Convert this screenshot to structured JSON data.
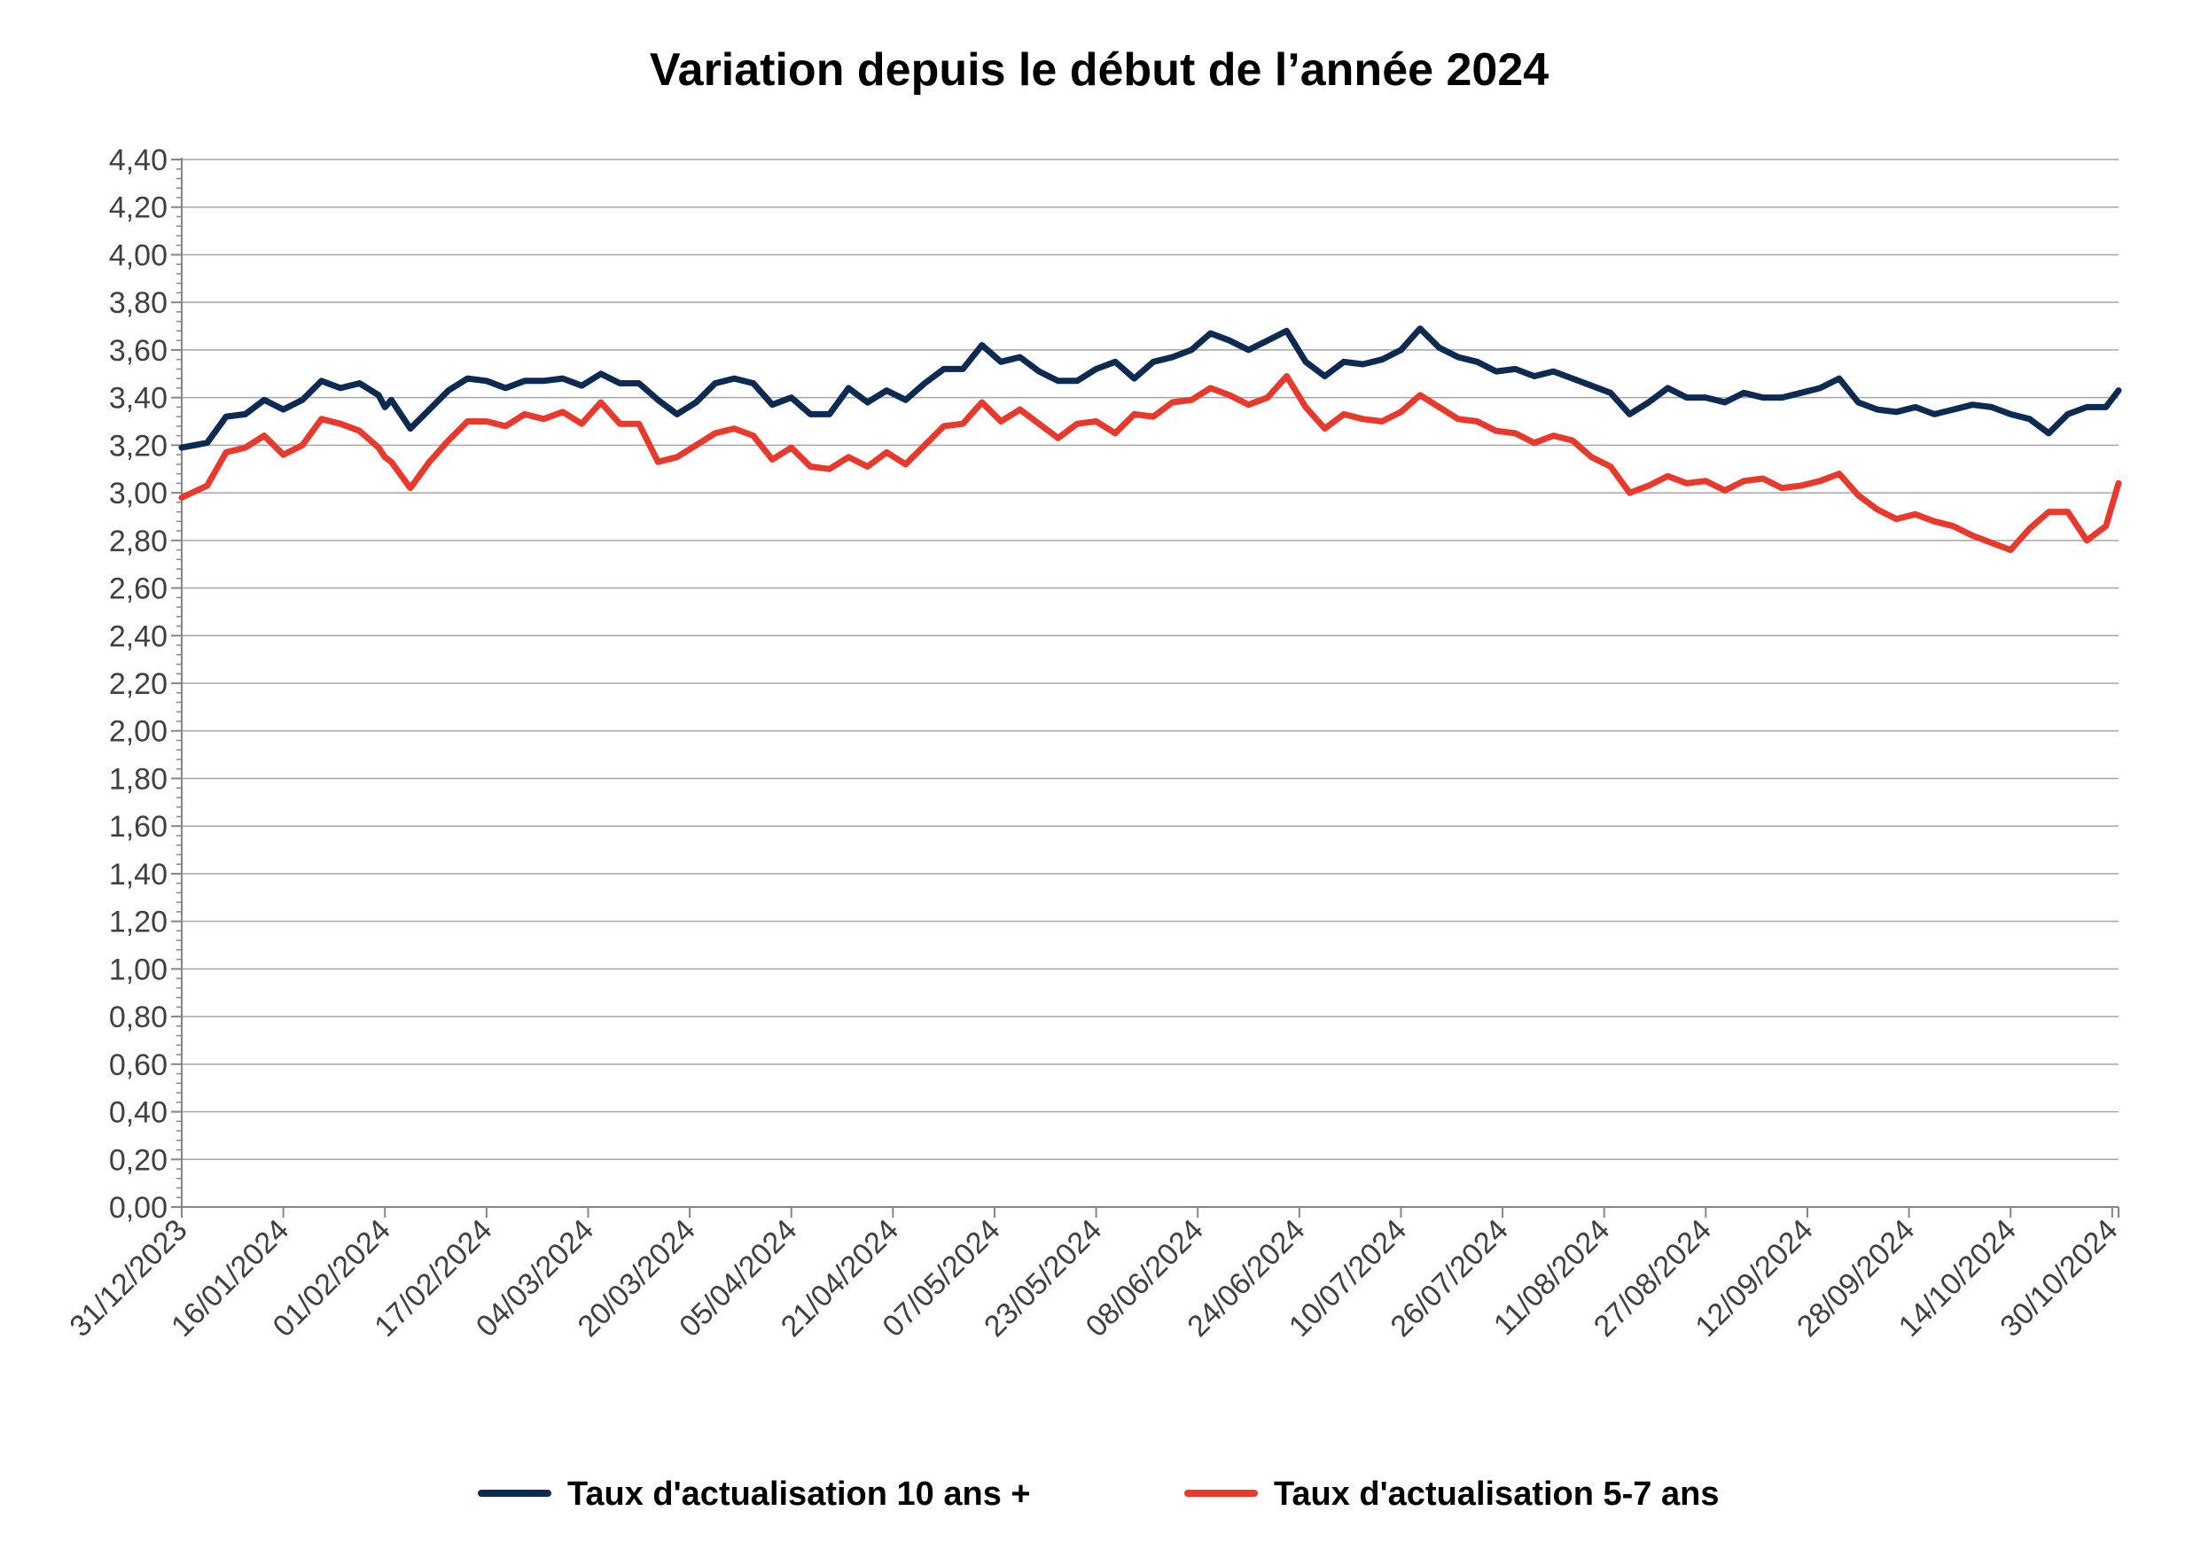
{
  "chart_data": {
    "type": "line",
    "title": "Variation depuis le début de l’année 2024",
    "xlabel": "",
    "ylabel": "",
    "ylim": [
      0,
      4.4
    ],
    "ytick_step": 0.2,
    "yticks": [
      "0,00",
      "0,20",
      "0,40",
      "0,60",
      "0,80",
      "1,00",
      "1,20",
      "1,40",
      "1,60",
      "1,80",
      "2,00",
      "2,20",
      "2,40",
      "2,60",
      "2,80",
      "3,00",
      "3,20",
      "3,40",
      "3,60",
      "3,80",
      "4,00",
      "4,20",
      "4,40"
    ],
    "x_tick_labels": [
      "31/12/2023",
      "16/01/2024",
      "01/02/2024",
      "17/02/2024",
      "04/03/2024",
      "20/03/2024",
      "05/04/2024",
      "21/04/2024",
      "07/05/2024",
      "23/05/2024",
      "08/06/2024",
      "24/06/2024",
      "10/07/2024",
      "26/07/2024",
      "11/08/2024",
      "27/08/2024",
      "12/09/2024",
      "28/09/2024",
      "14/10/2024",
      "30/10/2024"
    ],
    "xlim": [
      "31/12/2023",
      "31/10/2024"
    ],
    "grid": true,
    "legend": "bottom",
    "series": [
      {
        "name": "Taux d'actualisation 10 ans +",
        "color": "#0d2a53",
        "x": [
          "31/12/2023",
          "04/01/2024",
          "07/01/2024",
          "10/01/2024",
          "13/01/2024",
          "16/01/2024",
          "19/01/2024",
          "22/01/2024",
          "25/01/2024",
          "28/01/2024",
          "31/01/2024",
          "01/02/2024",
          "02/02/2024",
          "05/02/2024",
          "08/02/2024",
          "11/02/2024",
          "14/02/2024",
          "17/02/2024",
          "20/02/2024",
          "23/02/2024",
          "26/02/2024",
          "29/02/2024",
          "03/03/2024",
          "06/03/2024",
          "09/03/2024",
          "12/03/2024",
          "15/03/2024",
          "18/03/2024",
          "21/03/2024",
          "24/03/2024",
          "27/03/2024",
          "30/03/2024",
          "02/04/2024",
          "05/04/2024",
          "08/04/2024",
          "11/04/2024",
          "14/04/2024",
          "17/04/2024",
          "20/04/2024",
          "23/04/2024",
          "26/04/2024",
          "29/04/2024",
          "02/05/2024",
          "05/05/2024",
          "08/05/2024",
          "11/05/2024",
          "14/05/2024",
          "17/05/2024",
          "20/05/2024",
          "23/05/2024",
          "26/05/2024",
          "29/05/2024",
          "01/06/2024",
          "04/06/2024",
          "07/06/2024",
          "10/06/2024",
          "13/06/2024",
          "16/06/2024",
          "19/06/2024",
          "22/06/2024",
          "25/06/2024",
          "28/06/2024",
          "01/07/2024",
          "04/07/2024",
          "07/07/2024",
          "10/07/2024",
          "13/07/2024",
          "16/07/2024",
          "19/07/2024",
          "22/07/2024",
          "25/07/2024",
          "28/07/2024",
          "31/07/2024",
          "03/08/2024",
          "06/08/2024",
          "09/08/2024",
          "12/08/2024",
          "15/08/2024",
          "18/08/2024",
          "21/08/2024",
          "24/08/2024",
          "27/08/2024",
          "30/08/2024",
          "02/09/2024",
          "05/09/2024",
          "08/09/2024",
          "11/09/2024",
          "14/09/2024",
          "17/09/2024",
          "20/09/2024",
          "23/09/2024",
          "26/09/2024",
          "29/09/2024",
          "02/10/2024",
          "05/10/2024",
          "08/10/2024",
          "11/10/2024",
          "14/10/2024",
          "17/10/2024",
          "20/10/2024",
          "23/10/2024",
          "26/10/2024",
          "29/10/2024",
          "31/10/2024"
        ],
        "values": [
          3.19,
          3.21,
          3.32,
          3.33,
          3.39,
          3.35,
          3.39,
          3.47,
          3.44,
          3.46,
          3.41,
          3.36,
          3.39,
          3.27,
          3.35,
          3.43,
          3.48,
          3.47,
          3.44,
          3.47,
          3.47,
          3.48,
          3.45,
          3.5,
          3.46,
          3.46,
          3.39,
          3.33,
          3.38,
          3.46,
          3.48,
          3.46,
          3.37,
          3.4,
          3.33,
          3.33,
          3.44,
          3.38,
          3.43,
          3.39,
          3.46,
          3.52,
          3.52,
          3.62,
          3.55,
          3.57,
          3.51,
          3.47,
          3.47,
          3.52,
          3.55,
          3.48,
          3.55,
          3.57,
          3.6,
          3.67,
          3.64,
          3.6,
          3.64,
          3.68,
          3.55,
          3.49,
          3.55,
          3.54,
          3.56,
          3.6,
          3.69,
          3.61,
          3.57,
          3.55,
          3.51,
          3.52,
          3.49,
          3.51,
          3.48,
          3.45,
          3.42,
          3.33,
          3.38,
          3.44,
          3.4,
          3.4,
          3.38,
          3.42,
          3.4,
          3.4,
          3.42,
          3.44,
          3.48,
          3.38,
          3.35,
          3.34,
          3.36,
          3.33,
          3.35,
          3.37,
          3.36,
          3.33,
          3.31,
          3.25,
          3.33,
          3.36,
          3.36,
          3.43
        ]
      },
      {
        "name": "Taux d'actualisation 5-7 ans",
        "color": "#e8392c",
        "x": [
          "31/12/2023",
          "04/01/2024",
          "07/01/2024",
          "10/01/2024",
          "13/01/2024",
          "16/01/2024",
          "19/01/2024",
          "22/01/2024",
          "25/01/2024",
          "28/01/2024",
          "31/01/2024",
          "01/02/2024",
          "02/02/2024",
          "05/02/2024",
          "08/02/2024",
          "11/02/2024",
          "14/02/2024",
          "17/02/2024",
          "20/02/2024",
          "23/02/2024",
          "26/02/2024",
          "29/02/2024",
          "03/03/2024",
          "06/03/2024",
          "09/03/2024",
          "12/03/2024",
          "15/03/2024",
          "18/03/2024",
          "21/03/2024",
          "24/03/2024",
          "27/03/2024",
          "30/03/2024",
          "02/04/2024",
          "05/04/2024",
          "08/04/2024",
          "11/04/2024",
          "14/04/2024",
          "17/04/2024",
          "20/04/2024",
          "23/04/2024",
          "26/04/2024",
          "29/04/2024",
          "02/05/2024",
          "05/05/2024",
          "08/05/2024",
          "11/05/2024",
          "14/05/2024",
          "17/05/2024",
          "20/05/2024",
          "23/05/2024",
          "26/05/2024",
          "29/05/2024",
          "01/06/2024",
          "04/06/2024",
          "07/06/2024",
          "10/06/2024",
          "13/06/2024",
          "16/06/2024",
          "19/06/2024",
          "22/06/2024",
          "25/06/2024",
          "28/06/2024",
          "01/07/2024",
          "04/07/2024",
          "07/07/2024",
          "10/07/2024",
          "13/07/2024",
          "16/07/2024",
          "19/07/2024",
          "22/07/2024",
          "25/07/2024",
          "28/07/2024",
          "31/07/2024",
          "03/08/2024",
          "06/08/2024",
          "09/08/2024",
          "12/08/2024",
          "15/08/2024",
          "18/08/2024",
          "21/08/2024",
          "24/08/2024",
          "27/08/2024",
          "30/08/2024",
          "02/09/2024",
          "05/09/2024",
          "08/09/2024",
          "11/09/2024",
          "14/09/2024",
          "17/09/2024",
          "20/09/2024",
          "23/09/2024",
          "26/09/2024",
          "29/09/2024",
          "02/10/2024",
          "05/10/2024",
          "08/10/2024",
          "11/10/2024",
          "14/10/2024",
          "17/10/2024",
          "20/10/2024",
          "23/10/2024",
          "26/10/2024",
          "29/10/2024",
          "31/10/2024"
        ],
        "values": [
          2.98,
          3.03,
          3.17,
          3.19,
          3.24,
          3.16,
          3.2,
          3.31,
          3.29,
          3.26,
          3.19,
          3.15,
          3.13,
          3.02,
          3.13,
          3.22,
          3.3,
          3.3,
          3.28,
          3.33,
          3.31,
          3.34,
          3.29,
          3.38,
          3.29,
          3.29,
          3.13,
          3.15,
          3.2,
          3.25,
          3.27,
          3.24,
          3.14,
          3.19,
          3.11,
          3.1,
          3.15,
          3.11,
          3.17,
          3.12,
          3.2,
          3.28,
          3.29,
          3.38,
          3.3,
          3.35,
          3.29,
          3.23,
          3.29,
          3.3,
          3.25,
          3.33,
          3.32,
          3.38,
          3.39,
          3.44,
          3.41,
          3.37,
          3.4,
          3.49,
          3.36,
          3.27,
          3.33,
          3.31,
          3.3,
          3.34,
          3.41,
          3.36,
          3.31,
          3.3,
          3.26,
          3.25,
          3.21,
          3.24,
          3.22,
          3.15,
          3.11,
          3.0,
          3.03,
          3.07,
          3.04,
          3.05,
          3.01,
          3.05,
          3.06,
          3.02,
          3.03,
          3.05,
          3.08,
          2.99,
          2.93,
          2.89,
          2.91,
          2.88,
          2.86,
          2.82,
          2.79,
          2.76,
          2.85,
          2.92,
          2.92,
          2.8,
          2.86,
          3.04
        ]
      }
    ]
  }
}
